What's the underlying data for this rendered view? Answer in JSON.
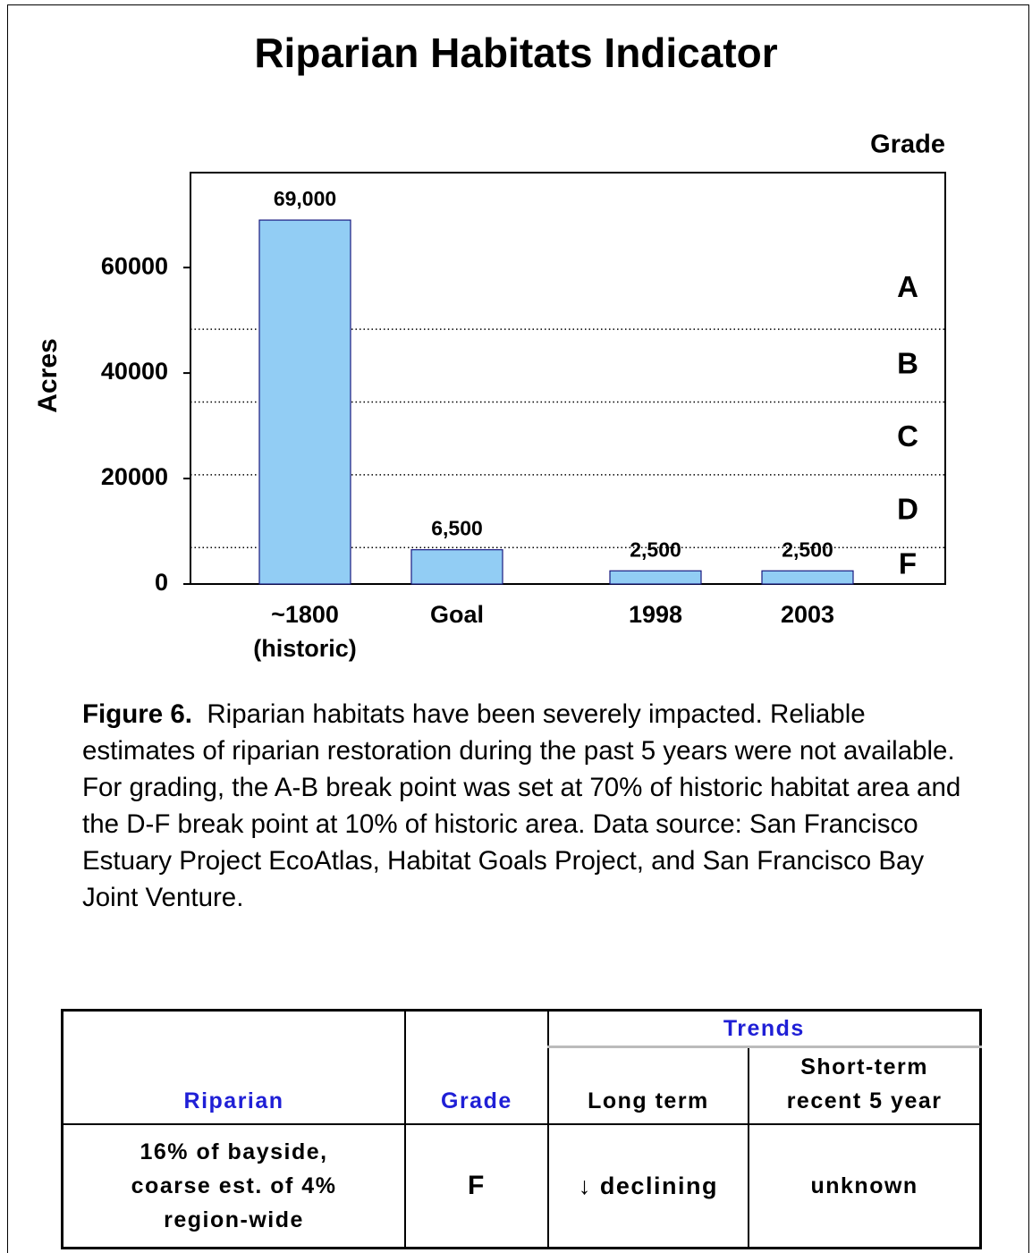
{
  "title": "Riparian Habitats Indicator",
  "chart_data": {
    "type": "bar",
    "y_label": "Acres",
    "categories": [
      "~1800\n(historic)",
      "Goal",
      "1998",
      "2003"
    ],
    "values": [
      69000,
      6500,
      2500,
      2500
    ],
    "value_labels": [
      "69,000",
      "6,500",
      "2,500",
      "2,500"
    ],
    "color": "#92cdf4",
    "ylim": [
      0,
      78000
    ],
    "yticks": [
      0,
      20000,
      40000,
      60000
    ],
    "grade_label": "Grade",
    "grades": [
      "A",
      "B",
      "C",
      "D",
      "F"
    ],
    "grade_breaks": [
      48300,
      34500,
      20700,
      6900
    ]
  },
  "caption": {
    "label": "Figure 6.",
    "text": "Riparian habitats have been severely impacted. Reliable estimates of riparian restoration during the past 5 years were not available.  For grading, the A-B break point was set at 70% of historic habitat area and the D-F break point at 10% of historic area.  Data source: San Francisco Estuary Project EcoAtlas, Habitat Goals Project, and San Francisco Bay Joint Venture."
  },
  "table": {
    "header": {
      "indicator": "Riparian",
      "grade": "Grade",
      "trends": "Trends",
      "long_term": "Long term",
      "short_term": "Short-term\nrecent 5 year"
    },
    "row": {
      "indicator": "16% of bayside,\ncoarse est. of 4%\nregion-wide",
      "grade": "F",
      "long_term": "↓ declining",
      "short_term": "unknown"
    }
  }
}
